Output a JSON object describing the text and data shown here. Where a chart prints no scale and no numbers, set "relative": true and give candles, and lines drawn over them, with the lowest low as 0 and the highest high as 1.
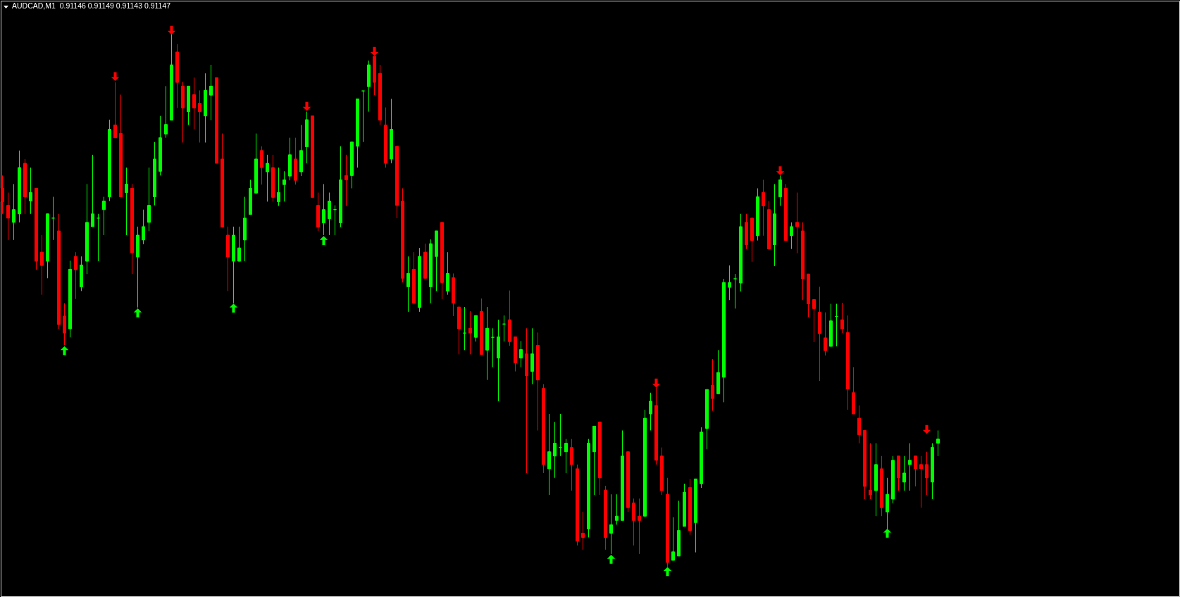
{
  "chart_data": {
    "type": "candlestick",
    "title": "AUDCAD,M1  0.91146 0.91149 0.91143 0.91147",
    "relative": true,
    "tick_labels": false,
    "categories": [
      null,
      null,
      null,
      null,
      null,
      null,
      null,
      null,
      null,
      null,
      null,
      null,
      null,
      null,
      null,
      null,
      null,
      null,
      null,
      null,
      null,
      null,
      null,
      null,
      null,
      null,
      null,
      null,
      null,
      null,
      null,
      null,
      null,
      null,
      null,
      null,
      null,
      null,
      null,
      null,
      null,
      null,
      null,
      null,
      null,
      null,
      null,
      null,
      null,
      null,
      null,
      null,
      null,
      null,
      null,
      null,
      null,
      null,
      null,
      null,
      null,
      null,
      null,
      null,
      null,
      null,
      null,
      null,
      null,
      null,
      null,
      null,
      null,
      null,
      null,
      null,
      null,
      null,
      null,
      null,
      null,
      null,
      null,
      null,
      null,
      null,
      null,
      null,
      null,
      null,
      null,
      null,
      null,
      null,
      null,
      null,
      null,
      null,
      null,
      null,
      null,
      null,
      null,
      null,
      null,
      null,
      null,
      null,
      null,
      null,
      null,
      null,
      null,
      null,
      null,
      null,
      null,
      null,
      null,
      null,
      null,
      null,
      null,
      null,
      null,
      null,
      null,
      null,
      null,
      null,
      null,
      null,
      null,
      null,
      null,
      null,
      null,
      null,
      null,
      null,
      null,
      null,
      null,
      null,
      null,
      null,
      null,
      null,
      null,
      null,
      null,
      null,
      null,
      null,
      null,
      null,
      null,
      null,
      null,
      null,
      null,
      null,
      null,
      null,
      null,
      null,
      null
    ],
    "ohlc": [
      [
        0.711,
        0.735,
        0.663,
        0.686
      ],
      [
        0.679,
        0.703,
        0.614,
        0.655
      ],
      [
        0.647,
        0.719,
        0.614,
        0.671
      ],
      [
        0.663,
        0.782,
        0.647,
        0.75
      ],
      [
        0.758,
        0.766,
        0.663,
        0.695
      ],
      [
        0.687,
        0.75,
        0.663,
        0.703
      ],
      [
        0.711,
        0.711,
        0.558,
        0.574
      ],
      [
        0.591,
        0.623,
        0.511,
        0.566
      ],
      [
        0.574,
        0.663,
        0.542,
        0.663
      ],
      [
        0.655,
        0.695,
        0.614,
        0.655
      ],
      [
        0.631,
        0.663,
        0.447,
        0.455
      ],
      [
        0.471,
        0.495,
        0.416,
        0.439
      ],
      [
        0.447,
        0.575,
        0.431,
        0.559
      ],
      [
        0.583,
        0.591,
        0.503,
        0.558
      ],
      [
        0.526,
        0.583,
        0.518,
        0.567
      ],
      [
        0.574,
        0.719,
        0.55,
        0.647
      ],
      [
        0.639,
        0.774,
        0.639,
        0.663
      ],
      [
        0.655,
        0.663,
        0.574,
        0.655
      ],
      [
        0.671,
        0.695,
        0.623,
        0.687
      ],
      [
        0.695,
        0.84,
        0.687,
        0.822
      ],
      [
        0.83,
        0.91,
        0.806,
        0.806
      ],
      [
        0.814,
        0.887,
        0.695,
        0.695
      ],
      [
        0.703,
        0.75,
        0.623,
        0.719
      ],
      [
        0.711,
        0.719,
        0.55,
        0.59
      ],
      [
        0.582,
        0.639,
        0.487,
        0.623
      ],
      [
        0.614,
        0.671,
        0.606,
        0.639
      ],
      [
        0.647,
        0.75,
        0.631,
        0.679
      ],
      [
        0.695,
        0.798,
        0.679,
        0.766
      ],
      [
        0.743,
        0.847,
        0.735,
        0.806
      ],
      [
        0.813,
        0.903,
        0.806,
        0.831
      ],
      [
        0.839,
        1,
        0.839,
        0.943
      ],
      [
        0.967,
        0.982,
        0.862,
        0.91
      ],
      [
        0.903,
        0.911,
        0.797,
        0.862
      ],
      [
        0.855,
        0.903,
        0.83,
        0.903
      ],
      [
        0.887,
        0.919,
        0.822,
        0.862
      ],
      [
        0.871,
        0.895,
        0.797,
        0.855
      ],
      [
        0.847,
        0.927,
        0.797,
        0.895
      ],
      [
        0.886,
        0.943,
        0.839,
        0.903
      ],
      [
        0.919,
        0.919,
        0.758,
        0.758
      ],
      [
        0.766,
        0.814,
        0.638,
        0.638
      ],
      [
        0.623,
        0.639,
        0.518,
        0.582
      ],
      [
        0.574,
        0.639,
        0.495,
        0.623
      ],
      [
        0.574,
        0.639,
        0.574,
        0.599
      ],
      [
        0.614,
        0.695,
        0.574,
        0.655
      ],
      [
        0.662,
        0.727,
        0.662,
        0.711
      ],
      [
        0.702,
        0.814,
        0.702,
        0.766
      ],
      [
        0.782,
        0.79,
        0.718,
        0.75
      ],
      [
        0.742,
        0.774,
        0.686,
        0.758
      ],
      [
        0.75,
        0.774,
        0.686,
        0.694
      ],
      [
        0.686,
        0.75,
        0.678,
        0.703
      ],
      [
        0.718,
        0.743,
        0.686,
        0.727
      ],
      [
        0.734,
        0.806,
        0.726,
        0.774
      ],
      [
        0.766,
        0.806,
        0.718,
        0.726
      ],
      [
        0.742,
        0.83,
        0.734,
        0.782
      ],
      [
        0.789,
        0.855,
        0.758,
        0.84
      ],
      [
        0.847,
        0.847,
        0.694,
        0.694
      ],
      [
        0.679,
        0.703,
        0.631,
        0.638
      ],
      [
        0.646,
        0.719,
        0.623,
        0.671
      ],
      [
        0.654,
        0.703,
        0.623,
        0.687
      ],
      [
        0.671,
        0.679,
        0.623,
        0.671
      ],
      [
        0.646,
        0.79,
        0.638,
        0.727
      ],
      [
        0.735,
        0.774,
        0.678,
        0.727
      ],
      [
        0.735,
        0.798,
        0.711,
        0.798
      ],
      [
        0.79,
        0.879,
        0.75,
        0.879
      ],
      [
        0.894,
        0.894,
        0.798,
        0.894
      ],
      [
        0.902,
        0.951,
        0.855,
        0.943
      ],
      [
        0.959,
        0.959,
        0.886,
        0.91
      ],
      [
        0.927,
        0.943,
        0.83,
        0.839
      ],
      [
        0.83,
        0.863,
        0.75,
        0.758
      ],
      [
        0.766,
        0.879,
        0.758,
        0.822
      ],
      [
        0.79,
        0.79,
        0.655,
        0.679
      ],
      [
        0.687,
        0.711,
        0.534,
        0.542
      ],
      [
        0.526,
        0.583,
        0.479,
        0.551
      ],
      [
        0.559,
        0.591,
        0.495,
        0.495
      ],
      [
        0.487,
        0.599,
        0.479,
        0.583
      ],
      [
        0.591,
        0.607,
        0.542,
        0.542
      ],
      [
        0.526,
        0.615,
        0.495,
        0.607
      ],
      [
        0.583,
        0.631,
        0.518,
        0.631
      ],
      [
        0.647,
        0.647,
        0.503,
        0.534
      ],
      [
        0.518,
        0.591,
        0.511,
        0.551
      ],
      [
        0.543,
        0.551,
        0.471,
        0.495
      ],
      [
        0.488,
        0.488,
        0.399,
        0.447
      ],
      [
        0.439,
        0.488,
        0.407,
        0.439
      ],
      [
        0.448,
        0.48,
        0.399,
        0.439
      ],
      [
        0.431,
        0.472,
        0.423,
        0.472
      ],
      [
        0.48,
        0.504,
        0.399,
        0.399
      ],
      [
        0.407,
        0.488,
        0.351,
        0.448
      ],
      [
        0.431,
        0.448,
        0.375,
        0.431
      ],
      [
        0.392,
        0.464,
        0.311,
        0.432
      ],
      [
        0.456,
        0.472,
        0.423,
        0.456
      ],
      [
        0.464,
        0.519,
        0.415,
        0.423
      ],
      [
        0.432,
        0.432,
        0.367,
        0.383
      ],
      [
        0.392,
        0.424,
        0.375,
        0.408
      ],
      [
        0.4,
        0.448,
        0.176,
        0.359
      ],
      [
        0.367,
        0.448,
        0.343,
        0.4
      ],
      [
        0.416,
        0.44,
        0.256,
        0.351
      ],
      [
        0.335,
        0.343,
        0.176,
        0.192
      ],
      [
        0.184,
        0.287,
        0.135,
        0.216
      ],
      [
        0.208,
        0.272,
        0.167,
        0.232
      ],
      [
        0.224,
        0.287,
        0.208,
        0.224
      ],
      [
        0.216,
        0.24,
        0.176,
        0.232
      ],
      [
        0.224,
        0.24,
        0.143,
        0.192
      ],
      [
        0.184,
        0.192,
        0.04,
        0.048
      ],
      [
        0.063,
        0.103,
        0.032,
        0.055
      ],
      [
        0.071,
        0.24,
        0.055,
        0.232
      ],
      [
        0.216,
        0.264,
        0.135,
        0.264
      ],
      [
        0.272,
        0.272,
        0.135,
        0.167
      ],
      [
        0.144,
        0.152,
        0.032,
        0.055
      ],
      [
        0.063,
        0.136,
        0.024,
        0.079
      ],
      [
        0.087,
        0.136,
        0.079,
        0.095
      ],
      [
        0.087,
        0.256,
        0.087,
        0.208
      ],
      [
        0.216,
        0.216,
        0.103,
        0.111
      ],
      [
        0.12,
        0.128,
        0.04,
        0.087
      ],
      [
        0.095,
        0.128,
        0.024,
        0.087
      ],
      [
        0.095,
        0.295,
        0.095,
        0.279
      ],
      [
        0.287,
        0.327,
        0.256,
        0.311
      ],
      [
        0.303,
        0.337,
        0.192,
        0.2
      ],
      [
        0.208,
        0.224,
        0.135,
        0.143
      ],
      [
        0.136,
        0.167,
        0,
        0.008
      ],
      [
        0.012,
        0.093,
        0.012,
        0.028
      ],
      [
        0.02,
        0.124,
        0.02,
        0.068
      ],
      [
        0.076,
        0.156,
        0.076,
        0.14
      ],
      [
        0.149,
        0.165,
        0.06,
        0.068
      ],
      [
        0.083,
        0.165,
        0.027,
        0.165
      ],
      [
        0.156,
        0.262,
        0.148,
        0.253
      ],
      [
        0.26,
        0.333,
        0.221,
        0.333
      ],
      [
        0.341,
        0.39,
        0.293,
        0.316
      ],
      [
        0.325,
        0.407,
        0.325,
        0.365
      ],
      [
        0.356,
        0.541,
        0.309,
        0.534
      ],
      [
        0.525,
        0.566,
        0.501,
        0.534
      ],
      [
        0.541,
        0.55,
        0.485,
        0.541
      ],
      [
        0.533,
        0.663,
        0.517,
        0.639
      ],
      [
        0.647,
        0.663,
        0.597,
        0.605
      ],
      [
        0.655,
        0.655,
        0.573,
        0.613
      ],
      [
        0.622,
        0.711,
        0.613,
        0.695
      ],
      [
        0.703,
        0.727,
        0.622,
        0.678
      ],
      [
        0.671,
        0.687,
        0.597,
        0.597
      ],
      [
        0.605,
        0.719,
        0.565,
        0.663
      ],
      [
        0.695,
        0.735,
        0.678,
        0.727
      ],
      [
        0.711,
        0.719,
        0.613,
        0.613
      ],
      [
        0.622,
        0.647,
        0.597,
        0.639
      ],
      [
        0.647,
        0.703,
        0.589,
        0.639
      ],
      [
        0.631,
        0.647,
        0.501,
        0.541
      ],
      [
        0.55,
        0.55,
        0.469,
        0.494
      ],
      [
        0.502,
        0.502,
        0.422,
        0.485
      ],
      [
        0.478,
        0.526,
        0.349,
        0.438
      ],
      [
        0.43,
        0.478,
        0.397,
        0.406
      ],
      [
        0.414,
        0.494,
        0.414,
        0.462
      ],
      [
        0.47,
        0.494,
        0.414,
        0.47
      ],
      [
        0.464,
        0.496,
        0.439,
        0.447
      ],
      [
        0.44,
        0.472,
        0.295,
        0.334
      ],
      [
        0.327,
        0.375,
        0.287,
        0.287
      ],
      [
        0.279,
        0.303,
        0.232,
        0.248
      ],
      [
        0.256,
        0.256,
        0.127,
        0.151
      ],
      [
        0.144,
        0.232,
        0.127,
        0.135
      ],
      [
        0.143,
        0.232,
        0.095,
        0.192
      ],
      [
        0.184,
        0.208,
        0.095,
        0.111
      ],
      [
        0.103,
        0.167,
        0.071,
        0.136
      ],
      [
        0.127,
        0.208,
        0.119,
        0.2
      ],
      [
        0.208,
        0.208,
        0.143,
        0.167
      ],
      [
        0.159,
        0.208,
        0.143,
        0.176
      ],
      [
        0.192,
        0.232,
        0.143,
        0.2
      ],
      [
        0.208,
        0.208,
        0.151,
        0.184
      ],
      [
        0.192,
        0.208,
        0.111,
        0.184
      ],
      [
        0.192,
        0.216,
        0.135,
        0.167
      ],
      [
        0.159,
        0.232,
        0.127,
        0.224
      ],
      [
        0.232,
        0.256,
        0.208,
        0.24
      ]
    ],
    "colors": [
      "#ff0000",
      "#ff0000",
      "#00ff00",
      "#00ff00",
      "#ff0000",
      "#00ff00",
      "#ff0000",
      "#ff0000",
      "#00ff00",
      "#00ff00",
      "#ff0000",
      "#ff0000",
      "#00ff00",
      "#ff0000",
      "#00ff00",
      "#00ff00",
      "#00ff00",
      "#00ff00",
      "#00ff00",
      "#00ff00",
      "#ff0000",
      "#ff0000",
      "#00ff00",
      "#ff0000",
      "#00ff00",
      "#00ff00",
      "#00ff00",
      "#00ff00",
      "#00ff00",
      "#00ff00",
      "#00ff00",
      "#ff0000",
      "#ff0000",
      "#00ff00",
      "#ff0000",
      "#ff0000",
      "#00ff00",
      "#00ff00",
      "#ff0000",
      "#ff0000",
      "#ff0000",
      "#00ff00",
      "#00ff00",
      "#00ff00",
      "#00ff00",
      "#00ff00",
      "#ff0000",
      "#00ff00",
      "#ff0000",
      "#00ff00",
      "#00ff00",
      "#00ff00",
      "#ff0000",
      "#00ff00",
      "#00ff00",
      "#ff0000",
      "#ff0000",
      "#00ff00",
      "#00ff00",
      "#00ff00",
      "#00ff00",
      "#ff0000",
      "#00ff00",
      "#00ff00",
      "#00ff00",
      "#00ff00",
      "#ff0000",
      "#ff0000",
      "#ff0000",
      "#00ff00",
      "#ff0000",
      "#ff0000",
      "#00ff00",
      "#ff0000",
      "#00ff00",
      "#ff0000",
      "#00ff00",
      "#00ff00",
      "#ff0000",
      "#00ff00",
      "#ff0000",
      "#ff0000",
      "#00ff00",
      "#ff0000",
      "#00ff00",
      "#ff0000",
      "#00ff00",
      "#00ff00",
      "#00ff00",
      "#00ff00",
      "#ff0000",
      "#ff0000",
      "#00ff00",
      "#ff0000",
      "#00ff00",
      "#ff0000",
      "#ff0000",
      "#00ff00",
      "#00ff00",
      "#00ff00",
      "#00ff00",
      "#ff0000",
      "#ff0000",
      "#ff0000",
      "#00ff00",
      "#00ff00",
      "#ff0000",
      "#ff0000",
      "#00ff00",
      "#00ff00",
      "#00ff00",
      "#ff0000",
      "#ff0000",
      "#ff0000",
      "#00ff00",
      "#00ff00",
      "#ff0000",
      "#ff0000",
      "#ff0000",
      "#00ff00",
      "#00ff00",
      "#00ff00",
      "#ff0000",
      "#00ff00",
      "#00ff00",
      "#00ff00",
      "#ff0000",
      "#00ff00",
      "#00ff00",
      "#00ff00",
      "#00ff00",
      "#00ff00",
      "#ff0000",
      "#ff0000",
      "#00ff00",
      "#ff0000",
      "#ff0000",
      "#00ff00",
      "#00ff00",
      "#ff0000",
      "#00ff00",
      "#ff0000",
      "#ff0000",
      "#ff0000",
      "#ff0000",
      "#ff0000",
      "#ff0000",
      "#00ff00",
      "#00ff00",
      "#ff0000",
      "#ff0000",
      "#ff0000",
      "#ff0000",
      "#ff0000",
      "#ff0000",
      "#00ff00",
      "#ff0000",
      "#00ff00",
      "#00ff00",
      "#ff0000",
      "#00ff00",
      "#00ff00",
      "#ff0000",
      "#ff0000",
      "#ff0000",
      "#00ff00",
      "#00ff00"
    ],
    "series": [
      {
        "type": "scatter",
        "color": "#ff0000",
        "marker": "triangle",
        "values": [
          null,
          null,
          null,
          null,
          null,
          null,
          null,
          null,
          null,
          null,
          null,
          null,
          null,
          null,
          null,
          null,
          null,
          null,
          null,
          null,
          0.921,
          null,
          null,
          null,
          null,
          null,
          null,
          null,
          null,
          null,
          1.008,
          null,
          null,
          null,
          null,
          null,
          null,
          null,
          null,
          null,
          null,
          null,
          null,
          null,
          null,
          null,
          null,
          null,
          null,
          null,
          null,
          null,
          null,
          null,
          0.865,
          null,
          null,
          null,
          null,
          null,
          null,
          null,
          null,
          null,
          null,
          null,
          0.968,
          null,
          null,
          null,
          null,
          null,
          null,
          null,
          null,
          null,
          null,
          null,
          null,
          null,
          null,
          null,
          null,
          null,
          null,
          null,
          null,
          null,
          null,
          null,
          null,
          null,
          null,
          null,
          null,
          null,
          null,
          null,
          null,
          null,
          null,
          null,
          null,
          null,
          null,
          null,
          null,
          null,
          null,
          null,
          null,
          null,
          null,
          null,
          null,
          null,
          0.345,
          null,
          null,
          null,
          null,
          null,
          null,
          null,
          null,
          null,
          null,
          null,
          null,
          null,
          null,
          null,
          null,
          null,
          null,
          null,
          null,
          null,
          0.744,
          null,
          null,
          null,
          null,
          null,
          null,
          null,
          null,
          null,
          null,
          null,
          null,
          null,
          null,
          null,
          null,
          null,
          null,
          null,
          null,
          null,
          null,
          null,
          null,
          null,
          0.258,
          null,
          null
        ]
      },
      {
        "type": "scatter",
        "color": "#00ff00",
        "marker": "triangle",
        "values": [
          null,
          null,
          null,
          null,
          null,
          null,
          null,
          null,
          null,
          null,
          null,
          0.406,
          null,
          null,
          null,
          null,
          null,
          null,
          null,
          null,
          null,
          null,
          null,
          null,
          0.477,
          null,
          null,
          null,
          null,
          null,
          null,
          null,
          null,
          null,
          null,
          null,
          null,
          null,
          null,
          null,
          null,
          0.486,
          null,
          null,
          null,
          null,
          null,
          null,
          null,
          null,
          null,
          null,
          null,
          null,
          null,
          null,
          null,
          0.613,
          null,
          null,
          null,
          null,
          null,
          null,
          null,
          null,
          null,
          null,
          null,
          null,
          null,
          null,
          null,
          null,
          null,
          null,
          null,
          null,
          null,
          null,
          null,
          null,
          null,
          null,
          null,
          null,
          null,
          null,
          null,
          null,
          null,
          null,
          null,
          null,
          null,
          null,
          null,
          null,
          null,
          null,
          null,
          null,
          null,
          null,
          null,
          null,
          null,
          null,
          0.014,
          null,
          null,
          null,
          null,
          null,
          null,
          null,
          null,
          null,
          -0.009,
          null,
          null,
          null,
          null,
          null,
          null,
          null,
          null,
          null,
          null,
          null,
          null,
          null,
          null,
          null,
          null,
          null,
          null,
          null,
          null,
          null,
          null,
          null,
          null,
          null,
          null,
          null,
          null,
          null,
          null,
          null,
          null,
          null,
          null,
          null,
          null,
          null,
          null,
          0.063,
          null,
          null,
          null,
          null,
          null,
          null,
          null,
          null,
          null
        ]
      }
    ]
  }
}
